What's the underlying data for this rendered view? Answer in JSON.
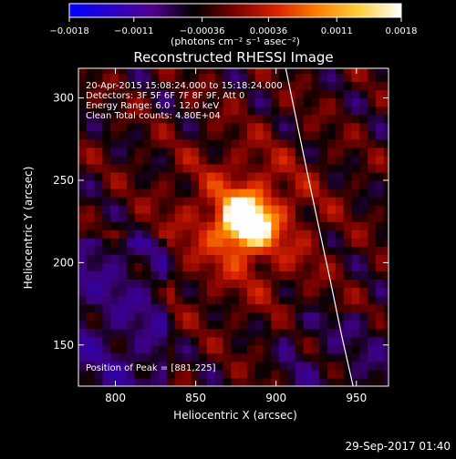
{
  "chart_data": {
    "type": "heatmap",
    "title": "Reconstructed RHESSI Image",
    "xlabel": "Heliocentric X (arcsec)",
    "ylabel": "Heliocentric Y (arcsec)",
    "xlim": [
      777,
      970
    ],
    "ylim": [
      125,
      318
    ],
    "x_ticks": [
      800,
      850,
      900,
      950
    ],
    "y_ticks": [
      150,
      200,
      250,
      300
    ],
    "x_tick_labels": [
      "800",
      "850",
      "900",
      "950"
    ],
    "y_tick_labels": [
      "150",
      "200",
      "250",
      "300"
    ],
    "colorbar": {
      "range": [
        -0.0018,
        0.0018
      ],
      "ticks": [
        -0.0018,
        -0.0011,
        -0.00036,
        0.00036,
        0.0011,
        0.0018
      ],
      "tick_labels": [
        "−0.0018",
        "−0.0011",
        "−0.00036",
        "0.00036",
        "0.0011",
        "0.0018"
      ],
      "unit_label": "(photons cm⁻² s⁻¹ asec⁻²)",
      "colormap": [
        "#0000ff",
        "#2a00c8",
        "#500090",
        "#000000",
        "#7a0000",
        "#d82200",
        "#ff8000",
        "#ffd040",
        "#ffffff"
      ]
    },
    "annotations": [
      "20-Apr-2015 15:08:24.000 to 15:18:24.000",
      "Detectors: 3F 5F 6F 7F 8F 9F, Att 0",
      "Energy Range: 6.0 - 12.0 keV",
      "Clean    Total counts: 4.80E+04"
    ],
    "peak": {
      "label": "Position of Peak = [881,225]",
      "x": 881,
      "y": 225
    },
    "limb_curve": {
      "x": [
        906,
        913,
        920,
        927,
        934,
        941,
        948
      ],
      "y": [
        318,
        285,
        252,
        220,
        188,
        155,
        125
      ],
      "color": "#ffffff"
    }
  },
  "footer": {
    "timestamp": "29-Sep-2017 01:40"
  }
}
